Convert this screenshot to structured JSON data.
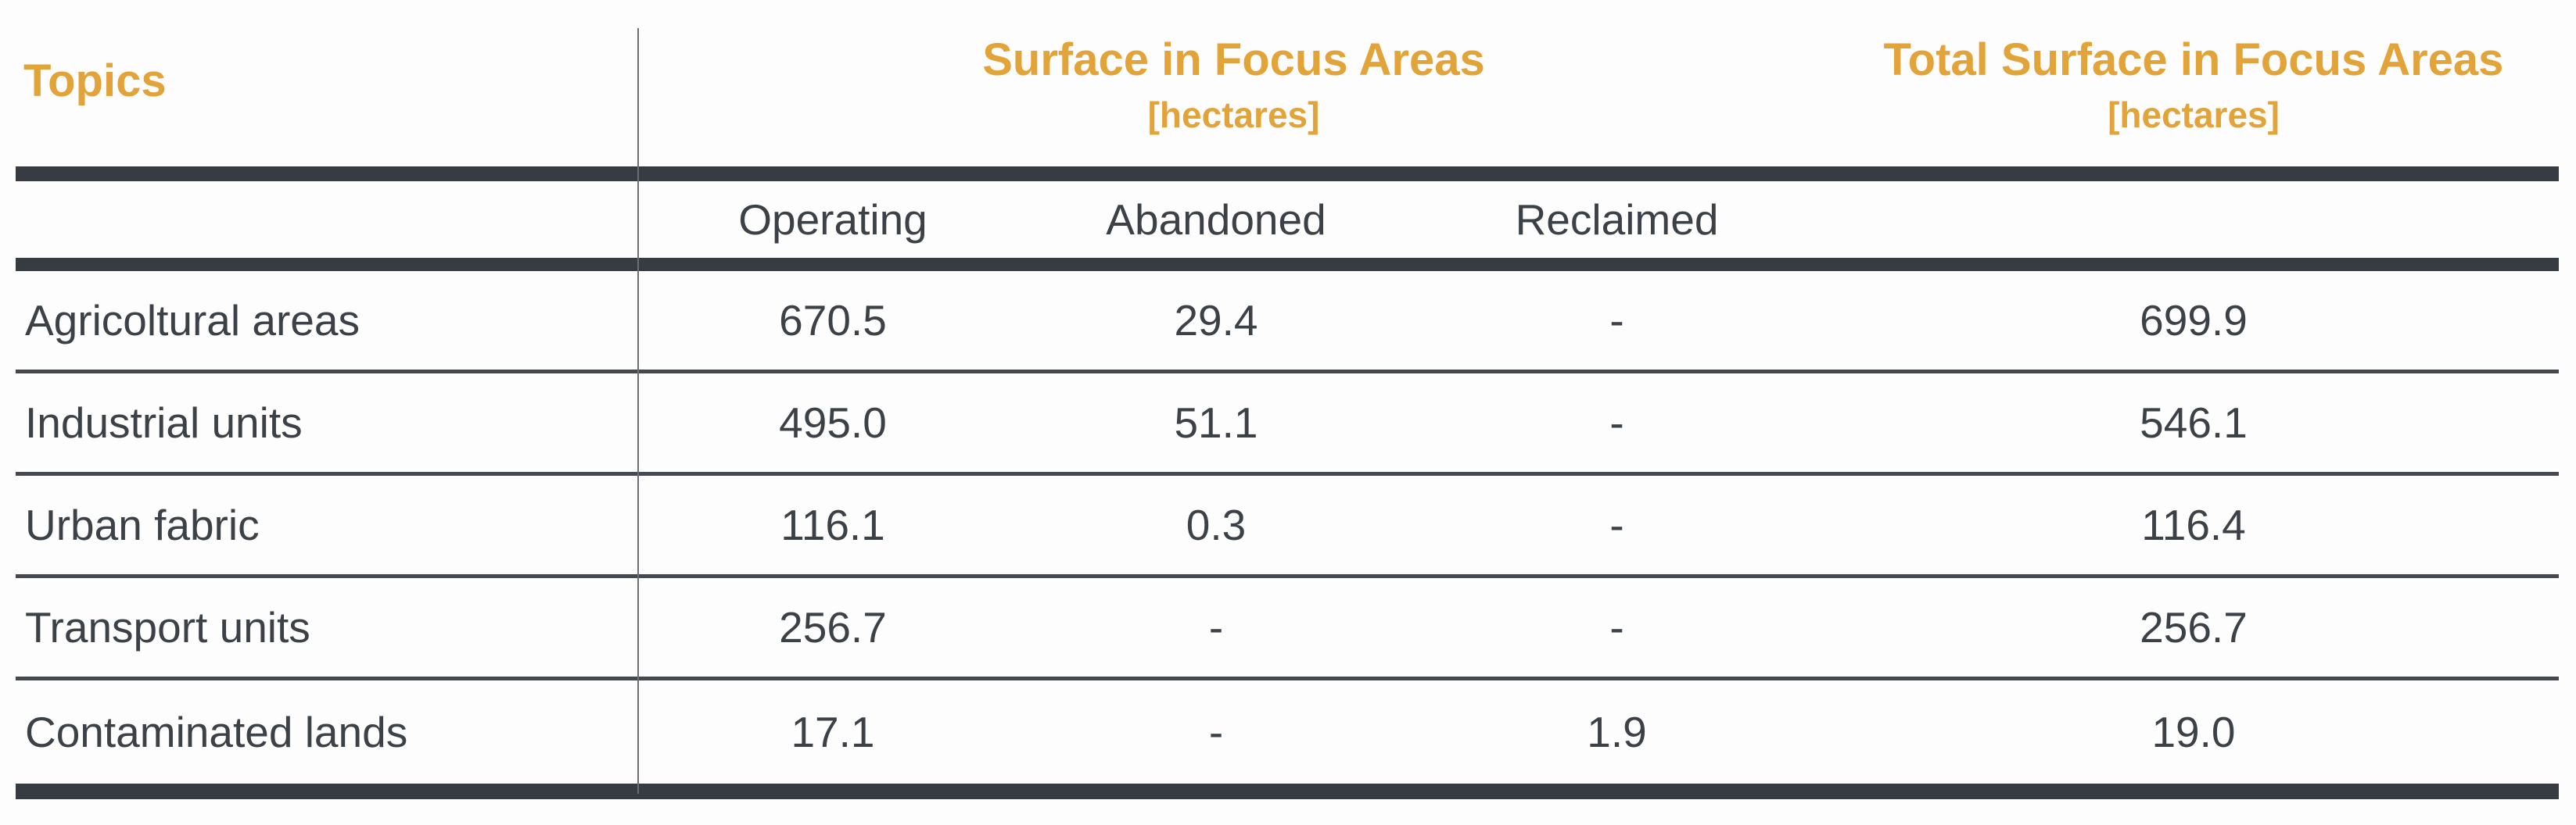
{
  "colors": {
    "accent": "#E2A339",
    "bar": "#373C43",
    "text": "#3C4147",
    "separator": "#45494F"
  },
  "table": {
    "topics_header": "Topics",
    "col_groups": [
      {
        "title": "Surface in Focus Areas",
        "unit": "[hectares]"
      },
      {
        "title": "Total Surface in Focus Areas",
        "unit": "[hectares]"
      }
    ],
    "subheaders": [
      "Operating",
      "Abandoned",
      "Reclaimed"
    ],
    "rows": [
      {
        "topic": "Agricoltural areas",
        "operating": "670.5",
        "abandoned": "29.4",
        "reclaimed": "-",
        "total": "699.9"
      },
      {
        "topic": "Industrial units",
        "operating": "495.0",
        "abandoned": "51.1",
        "reclaimed": "-",
        "total": "546.1"
      },
      {
        "topic": "Urban fabric",
        "operating": "116.1",
        "abandoned": "0.3",
        "reclaimed": "-",
        "total": "116.4"
      },
      {
        "topic": "Transport units",
        "operating": "256.7",
        "abandoned": "-",
        "reclaimed": "-",
        "total": "256.7"
      },
      {
        "topic": "Contaminated lands",
        "operating": "17.1",
        "abandoned": "-",
        "reclaimed": "1.9",
        "total": "19.0"
      }
    ]
  },
  "chart_data": {
    "type": "table",
    "title": "Surface in Focus Areas [hectares]",
    "columns": [
      "Topics",
      "Operating",
      "Abandoned",
      "Reclaimed",
      "Total Surface in Focus Areas [hectares]"
    ],
    "rows": [
      [
        "Agricoltural areas",
        670.5,
        29.4,
        null,
        699.9
      ],
      [
        "Industrial units",
        495.0,
        51.1,
        null,
        546.1
      ],
      [
        "Urban fabric",
        116.1,
        0.3,
        null,
        116.4
      ],
      [
        "Transport units",
        256.7,
        null,
        null,
        256.7
      ],
      [
        "Contaminated lands",
        17.1,
        null,
        1.9,
        19.0
      ]
    ],
    "missing_value_symbol": "-",
    "unit": "hectares"
  }
}
